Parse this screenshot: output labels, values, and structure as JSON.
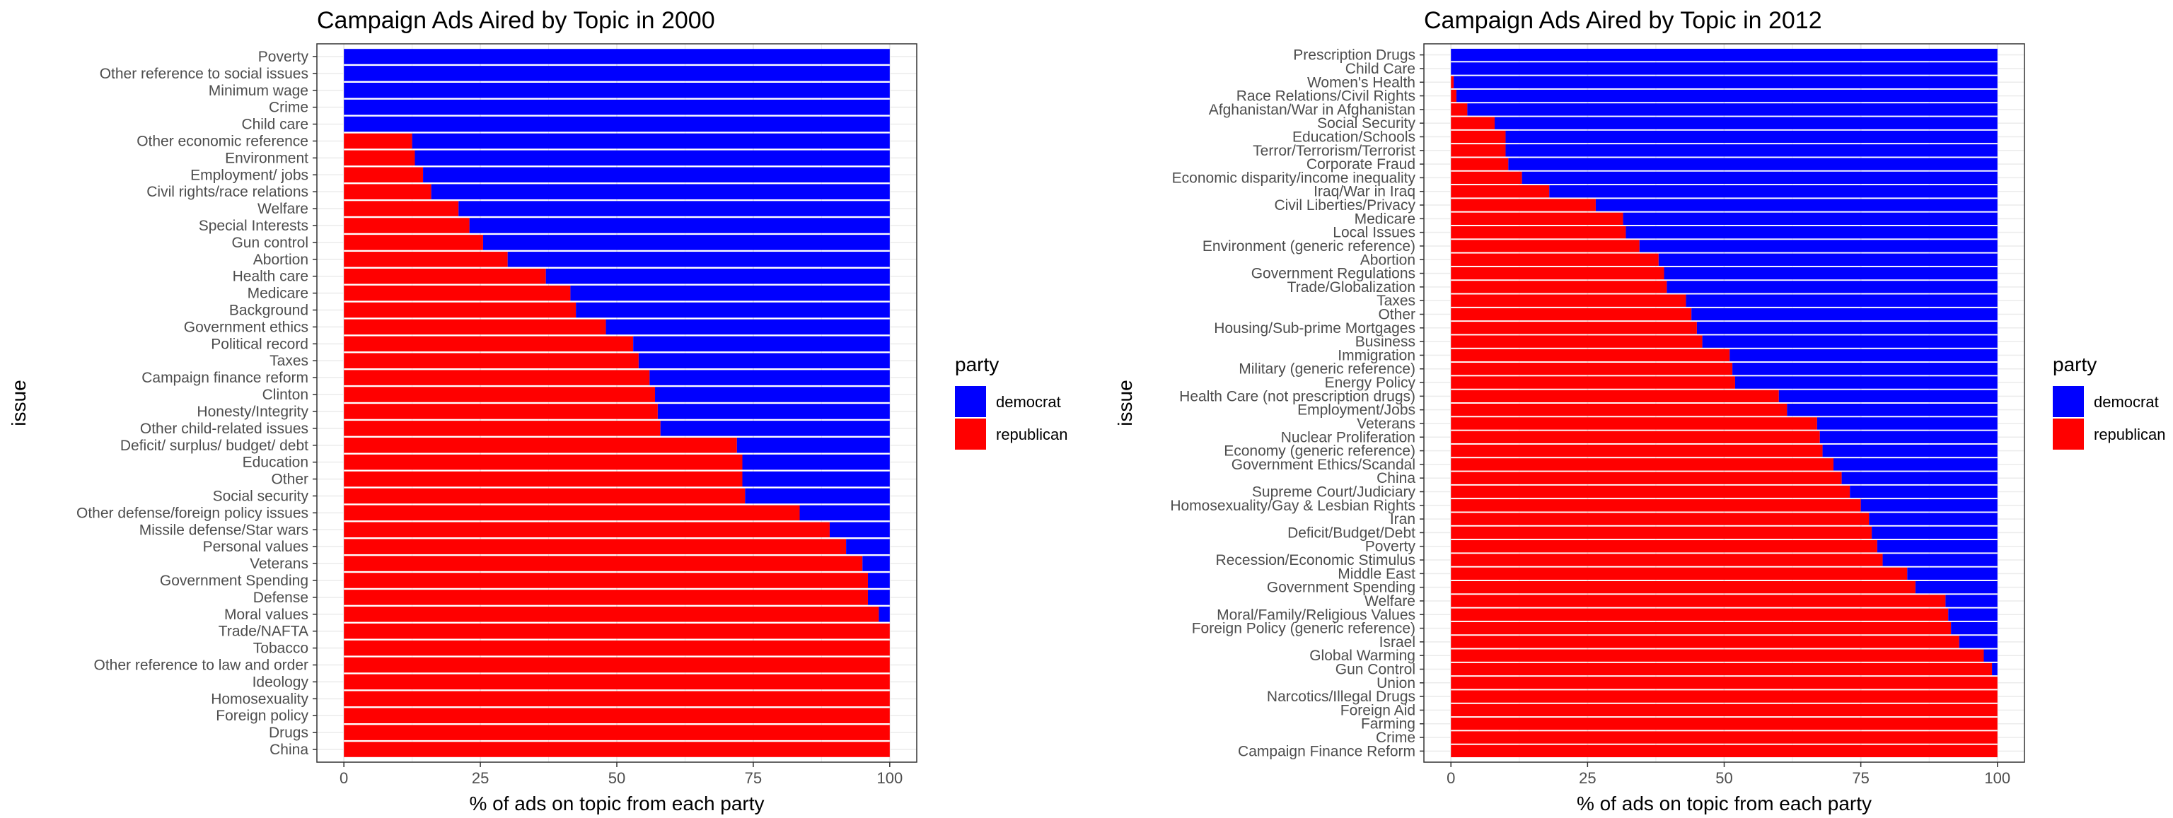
{
  "colors": {
    "democrat": "#0000ff",
    "republican": "#ff0000",
    "grid": "#ebebeb",
    "panel_border": "#333333"
  },
  "legend": {
    "title": "party",
    "items": [
      {
        "key": "democrat",
        "label": "democrat"
      },
      {
        "key": "republican",
        "label": "republican"
      }
    ]
  },
  "chart_data": [
    {
      "type": "bar",
      "stacked": true,
      "orientation": "horizontal",
      "title": "Campaign Ads Aired by Topic in 2000",
      "xlabel": "% of ads on topic from each party",
      "ylabel": "issue",
      "xlim": [
        0,
        100
      ],
      "xticks": [
        0,
        25,
        50,
        75,
        100
      ],
      "grid": true,
      "legend_position": "right",
      "categories": [
        "Poverty",
        "Other reference to social issues",
        "Minimum wage",
        "Crime",
        "Child care",
        "Other economic reference",
        "Environment",
        "Employment/ jobs",
        "Civil rights/race relations",
        "Welfare",
        "Special Interests",
        "Gun control",
        "Abortion",
        "Health care",
        "Medicare",
        "Background",
        "Government ethics",
        "Political record",
        "Taxes",
        "Campaign finance reform",
        "Clinton",
        "Honesty/Integrity",
        "Other child-related issues",
        "Deficit/ surplus/ budget/ debt",
        "Education",
        "Other",
        "Social security",
        "Other defense/foreign policy issues",
        "Missile defense/Star wars",
        "Personal values",
        "Veterans",
        "Government Spending",
        "Defense",
        "Moral values",
        "Trade/NAFTA",
        "Tobacco",
        "Other reference to law and order",
        "Ideology",
        "Homosexuality",
        "Foreign policy",
        "Drugs",
        "China"
      ],
      "series": [
        {
          "name": "republican",
          "values": [
            0,
            0,
            0,
            0,
            0,
            12.5,
            13,
            14.5,
            16,
            21,
            23,
            25.5,
            30,
            37,
            41.5,
            42.5,
            48,
            53,
            54,
            56,
            57,
            57.5,
            58,
            72,
            73,
            73,
            73.5,
            83.5,
            89,
            92,
            95,
            96,
            96,
            98,
            100,
            100,
            100,
            100,
            100,
            100,
            100,
            100
          ]
        },
        {
          "name": "democrat",
          "values": [
            100,
            100,
            100,
            100,
            100,
            87.5,
            87,
            85.5,
            84,
            79,
            77,
            74.5,
            70,
            63,
            58.5,
            57.5,
            52,
            47,
            46,
            44,
            43,
            42.5,
            42,
            28,
            27,
            27,
            26.5,
            16.5,
            11,
            8,
            5,
            4,
            4,
            2,
            0,
            0,
            0,
            0,
            0,
            0,
            0,
            0
          ]
        }
      ]
    },
    {
      "type": "bar",
      "stacked": true,
      "orientation": "horizontal",
      "title": "Campaign Ads Aired by Topic in 2012",
      "xlabel": "% of ads on topic from each party",
      "ylabel": "issue",
      "xlim": [
        0,
        100
      ],
      "xticks": [
        0,
        25,
        50,
        75,
        100
      ],
      "grid": true,
      "legend_position": "right",
      "categories": [
        "Prescription Drugs",
        "Child Care",
        "Women's Health",
        "Race Relations/Civil Rights",
        "Afghanistan/War in Afghanistan",
        "Social Security",
        "Education/Schools",
        "Terror/Terrorism/Terrorist",
        "Corporate Fraud",
        "Economic disparity/income inequality",
        "Iraq/War in Iraq",
        "Civil Liberties/Privacy",
        "Medicare",
        "Local Issues",
        "Environment (generic reference)",
        "Abortion",
        "Government Regulations",
        "Trade/Globalization",
        "Taxes",
        "Other",
        "Housing/Sub-prime Mortgages",
        "Business",
        "Immigration",
        "Military (generic reference)",
        "Energy Policy",
        "Health Care (not prescription drugs)",
        "Employment/Jobs",
        "Veterans",
        "Nuclear Proliferation",
        "Economy (generic reference)",
        "Government Ethics/Scandal",
        "China",
        "Supreme Court/Judiciary",
        "Homosexuality/Gay & Lesbian Rights",
        "Iran",
        "Deficit/Budget/Debt",
        "Poverty",
        "Recession/Economic Stimulus",
        "Middle East",
        "Government Spending",
        "Welfare",
        "Moral/Family/Religious Values",
        "Foreign Policy (generic reference)",
        "Israel",
        "Global Warming",
        "Gun Control",
        "Union",
        "Narcotics/Illegal Drugs",
        "Foreign Aid",
        "Farming",
        "Crime",
        "Campaign Finance Reform"
      ],
      "series": [
        {
          "name": "republican",
          "values": [
            0,
            0,
            0.5,
            1,
            3,
            8,
            10,
            10,
            10.5,
            13,
            18,
            26.5,
            31.5,
            32,
            34.5,
            38,
            39,
            39.5,
            43,
            44,
            45,
            46,
            51,
            51.5,
            52,
            60,
            61.5,
            67,
            67.5,
            68,
            70,
            71.5,
            73,
            75,
            76.5,
            77,
            78,
            79,
            83.5,
            85,
            90.5,
            91,
            91.5,
            93,
            97.5,
            99,
            100,
            100,
            100,
            100,
            100,
            100
          ]
        },
        {
          "name": "democrat",
          "values": [
            100,
            100,
            99.5,
            99,
            97,
            92,
            90,
            90,
            89.5,
            87,
            82,
            73.5,
            68.5,
            68,
            65.5,
            62,
            61,
            60.5,
            57,
            56,
            55,
            54,
            49,
            48.5,
            48,
            40,
            38.5,
            33,
            32.5,
            32,
            30,
            28.5,
            27,
            25,
            23.5,
            23,
            22,
            21,
            16.5,
            15,
            9.5,
            9,
            8.5,
            7,
            2.5,
            1,
            0,
            0,
            0,
            0,
            0,
            0
          ]
        }
      ]
    }
  ]
}
